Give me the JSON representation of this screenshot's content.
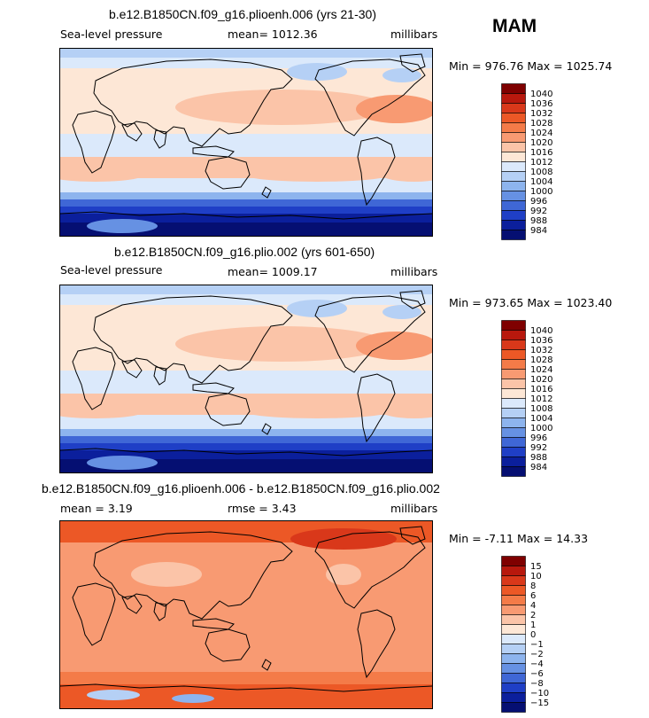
{
  "season": "MAM",
  "chart_data": [
    {
      "type": "heatmap",
      "title": "b.e12.B1850CN.f09_g16.plioenh.006 (yrs 21-30)",
      "variable": "Sea-level pressure",
      "mean_label": "mean=",
      "mean_value": "1012.36",
      "units": "millibars",
      "min_label": "Min =",
      "min_value": "976.76",
      "max_label": "Max =",
      "max_value": "1025.74",
      "levels": [
        "1040",
        "1036",
        "1032",
        "1028",
        "1024",
        "1020",
        "1016",
        "1012",
        "1008",
        "1004",
        "1000",
        "996",
        "992",
        "988",
        "984"
      ],
      "colors": [
        "#7f0000",
        "#b8180d",
        "#d9381a",
        "#ec5826",
        "#f47b48",
        "#f89a72",
        "#fbc4a8",
        "#fde7d6",
        "#dbe9fb",
        "#b5d0f5",
        "#8db4ee",
        "#6691e3",
        "#3f67d6",
        "#1f3fc6",
        "#0b1f9c",
        "#050f72"
      ]
    },
    {
      "type": "heatmap",
      "title": "b.e12.B1850CN.f09_g16.plio.002 (yrs 601-650)",
      "variable": "Sea-level pressure",
      "mean_label": "mean=",
      "mean_value": "1009.17",
      "units": "millibars",
      "min_label": "Min =",
      "min_value": "973.65",
      "max_label": "Max =",
      "max_value": "1023.40",
      "levels": [
        "1040",
        "1036",
        "1032",
        "1028",
        "1024",
        "1020",
        "1016",
        "1012",
        "1008",
        "1004",
        "1000",
        "996",
        "992",
        "988",
        "984"
      ],
      "colors": [
        "#7f0000",
        "#b8180d",
        "#d9381a",
        "#ec5826",
        "#f47b48",
        "#f89a72",
        "#fbc4a8",
        "#fde7d6",
        "#dbe9fb",
        "#b5d0f5",
        "#8db4ee",
        "#6691e3",
        "#3f67d6",
        "#1f3fc6",
        "#0b1f9c",
        "#050f72"
      ]
    },
    {
      "type": "heatmap",
      "title": "b.e12.B1850CN.f09_g16.plioenh.006 - b.e12.B1850CN.f09_g16.plio.002",
      "mean_label": "mean =",
      "mean_value": "3.19",
      "rmse_label": "rmse =",
      "rmse_value": "3.43",
      "units": "millibars",
      "min_label": "Min =",
      "min_value": "-7.11",
      "max_label": "Max =",
      "max_value": "14.33",
      "levels": [
        "15",
        "10",
        "8",
        "6",
        "4",
        "2",
        "1",
        "0",
        "−1",
        "−2",
        "−4",
        "−6",
        "−8",
        "−10",
        "−15"
      ],
      "colors": [
        "#7f0000",
        "#b8180d",
        "#d9381a",
        "#ec5826",
        "#f47b48",
        "#f89a72",
        "#fbc4a8",
        "#fde7d6",
        "#dbe9fb",
        "#b5d0f5",
        "#8db4ee",
        "#6691e3",
        "#3f67d6",
        "#1f3fc6",
        "#0b1f9c",
        "#050f72"
      ]
    }
  ]
}
